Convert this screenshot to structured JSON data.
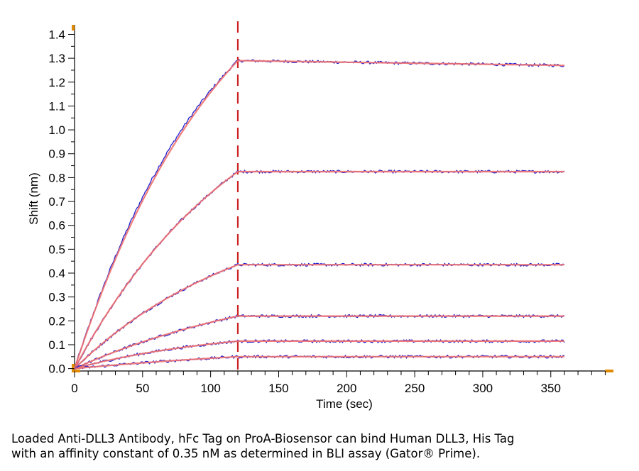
{
  "chart_data": {
    "type": "line",
    "xlabel": "Time (sec)",
    "ylabel": "Shift (nm)",
    "xlim": [
      0,
      395
    ],
    "ylim": [
      -0.01,
      1.44
    ],
    "x_ticks": [
      0,
      50,
      100,
      150,
      200,
      250,
      300,
      350
    ],
    "y_ticks": [
      "0.0",
      "0.1",
      "0.2",
      "0.3",
      "0.4",
      "0.5",
      "0.6",
      "0.7",
      "0.8",
      "0.9",
      "1.0",
      "1.1",
      "1.2",
      "1.3",
      "1.4"
    ],
    "association_end": 120,
    "end_time": 360,
    "grid": false,
    "colors": {
      "measured": "#2222cc",
      "fit": "#f07070",
      "marker": "#cc2222",
      "axis_accent": "#e08a00"
    },
    "series": [
      {
        "values": [
          [
            0,
            0.0
          ],
          [
            20,
            0.32
          ],
          [
            40,
            0.6
          ],
          [
            60,
            0.83
          ],
          [
            80,
            1.03
          ],
          [
            100,
            1.18
          ],
          [
            120,
            1.29
          ],
          [
            200,
            1.285
          ],
          [
            300,
            1.28
          ],
          [
            360,
            1.27
          ]
        ]
      },
      {
        "values": [
          [
            0,
            0.0
          ],
          [
            30,
            0.28
          ],
          [
            60,
            0.53
          ],
          [
            90,
            0.71
          ],
          [
            120,
            0.825
          ],
          [
            200,
            0.825
          ],
          [
            300,
            0.825
          ],
          [
            360,
            0.825
          ]
        ]
      },
      {
        "values": [
          [
            0,
            0.0
          ],
          [
            30,
            0.15
          ],
          [
            60,
            0.27
          ],
          [
            90,
            0.36
          ],
          [
            120,
            0.435
          ],
          [
            200,
            0.435
          ],
          [
            300,
            0.435
          ],
          [
            360,
            0.435
          ]
        ]
      },
      {
        "values": [
          [
            0,
            0.0
          ],
          [
            30,
            0.07
          ],
          [
            60,
            0.13
          ],
          [
            90,
            0.18
          ],
          [
            120,
            0.22
          ],
          [
            200,
            0.22
          ],
          [
            300,
            0.22
          ],
          [
            360,
            0.22
          ]
        ]
      },
      {
        "values": [
          [
            0,
            0.0
          ],
          [
            30,
            0.04
          ],
          [
            60,
            0.07
          ],
          [
            90,
            0.095
          ],
          [
            120,
            0.115
          ],
          [
            200,
            0.115
          ],
          [
            300,
            0.115
          ],
          [
            360,
            0.115
          ]
        ]
      },
      {
        "values": [
          [
            0,
            0.0
          ],
          [
            30,
            0.015
          ],
          [
            60,
            0.03
          ],
          [
            90,
            0.042
          ],
          [
            120,
            0.05
          ],
          [
            200,
            0.05
          ],
          [
            300,
            0.05
          ],
          [
            360,
            0.05
          ]
        ]
      }
    ]
  },
  "caption": {
    "line1": "Loaded Anti-DLL3 Antibody, hFc Tag on ProA-Biosensor can bind Human DLL3, His Tag",
    "line2": "with an affinity constant of 0.35 nM as determined in BLI assay (Gator® Prime)."
  }
}
